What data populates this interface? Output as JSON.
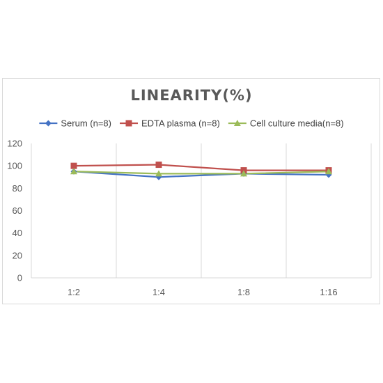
{
  "chart_data": {
    "type": "line",
    "title": "LINEARITY(%)",
    "xlabel": "",
    "ylabel": "",
    "categories": [
      "1:2",
      "1:4",
      "1:8",
      "1:16"
    ],
    "ylim": [
      0,
      120
    ],
    "yticks": [
      0,
      20,
      40,
      60,
      80,
      100,
      120
    ],
    "grid": "vertical",
    "legend_position": "top",
    "series": [
      {
        "name": "Serum (n=8)",
        "values": [
          95,
          90,
          93,
          92
        ],
        "color": "#4472c4",
        "marker": "diamond"
      },
      {
        "name": "EDTA plasma (n=8)",
        "values": [
          100,
          101,
          96,
          96
        ],
        "color": "#c0504d",
        "marker": "square"
      },
      {
        "name": "Cell culture media(n=8)",
        "values": [
          95,
          93,
          93,
          95
        ],
        "color": "#9bbb59",
        "marker": "triangle"
      }
    ]
  }
}
